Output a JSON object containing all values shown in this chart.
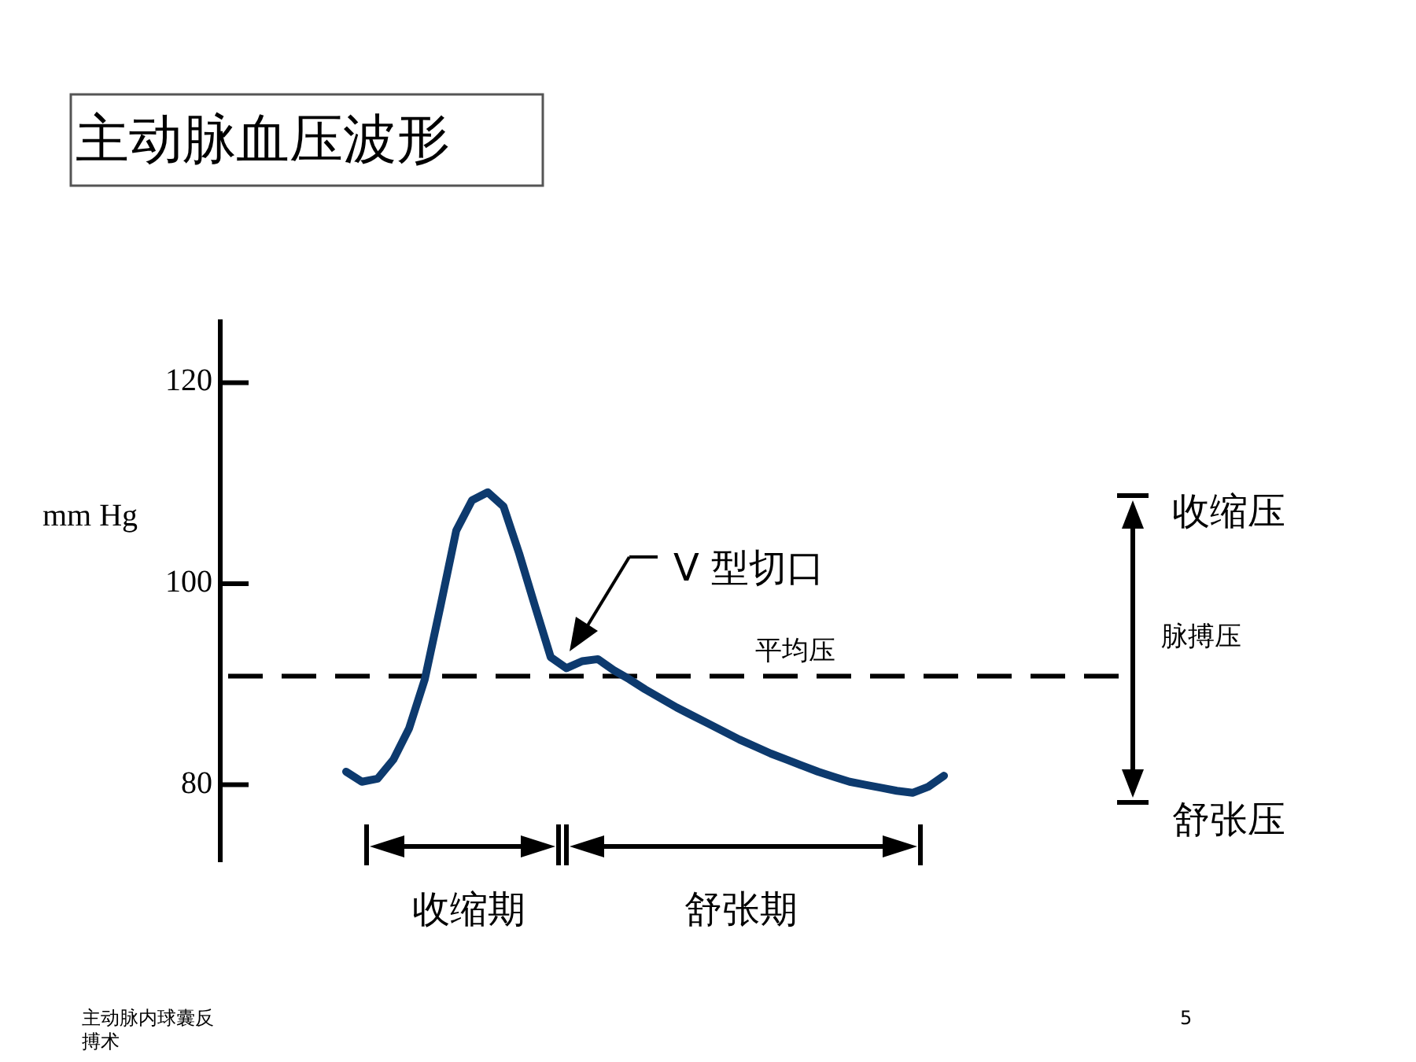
{
  "chart_data": {
    "type": "line",
    "title": "主动脉血压波形",
    "ylabel": "mm Hg",
    "categories": [
      null,
      null,
      null,
      null,
      null,
      null,
      null,
      null,
      null,
      null,
      null,
      null,
      null,
      null,
      null,
      null,
      null,
      null,
      null,
      null,
      null,
      null,
      null,
      null,
      null,
      null,
      null,
      null,
      null,
      null,
      null,
      null,
      null,
      null,
      null,
      null,
      null,
      null,
      null
    ],
    "series": [
      {
        "color": "#0d3a6e",
        "values": [
          81.3,
          80.3,
          80.6,
          82.5,
          85.6,
          90.5,
          97.8,
          105.3,
          108.3,
          109.1,
          107.7,
          103.0,
          97.8,
          92.7,
          91.6,
          92.3,
          92.5,
          91.4,
          90.5,
          89.5,
          88.6,
          87.7,
          86.9,
          86.1,
          85.3,
          84.5,
          83.8,
          83.1,
          82.5,
          81.9,
          81.3,
          80.8,
          80.3,
          80.0,
          79.7,
          79.4,
          79.2,
          79.8,
          80.9
        ]
      }
    ],
    "ylim": [
      72.3,
      126.3
    ],
    "yticks": [
      80,
      100,
      120
    ],
    "tick_labels": "y",
    "grid": false,
    "marker": "none",
    "line_style": "solid",
    "ref_lines": [
      {
        "axis": "y",
        "value": 90.8,
        "label": "平均压",
        "color": "#000000",
        "line_style": "dashed"
      }
    ],
    "annotations": [
      "V 型切口",
      "收缩压",
      "舒张压",
      "脉搏压",
      "收缩期",
      "舒张期",
      "主动脉内球囊反搏术",
      "5"
    ]
  }
}
